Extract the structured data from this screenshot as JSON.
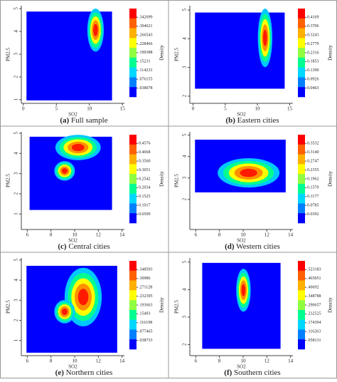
{
  "chart_data": [
    {
      "type": "heatmap",
      "caption_label": "(a)",
      "caption": "Full sample",
      "xlabel": "SO2",
      "ylabel": "PM2.5",
      "zlabel": "Density",
      "xlim": [
        -0.3,
        15.3
      ],
      "xticks": [
        0,
        5,
        10,
        15
      ],
      "ylim": [
        0.84,
        5.13
      ],
      "yticks": [
        1,
        2,
        3,
        4,
        5
      ],
      "zlim": [
        0,
        0.38
      ],
      "zticks": [
        {
          "value": 0.342699,
          "label": ".342699"
        },
        {
          "value": 0.304621,
          "label": ".304621"
        },
        {
          "value": 0.266543,
          "label": ".266543"
        },
        {
          "value": 0.228466,
          "label": ".228466"
        },
        {
          "value": 0.190388,
          "label": ".190388"
        },
        {
          "value": 0.15231,
          "label": ".15231"
        },
        {
          "value": 0.114233,
          "label": ".114233"
        },
        {
          "value": 0.076155,
          "label": ".076155"
        },
        {
          "value": 0.038078,
          "label": ".038078"
        }
      ]
    },
    {
      "type": "heatmap",
      "caption_label": "(b)",
      "caption": "Eastern cities",
      "xlabel": "SO2",
      "ylabel": "PM2.5",
      "zlabel": "Density",
      "xlim": [
        -0.5,
        15.5
      ],
      "xticks": [
        0,
        5,
        10,
        15
      ],
      "ylim": [
        1.75,
        5.15
      ],
      "yticks": [
        2,
        3,
        4,
        5
      ],
      "zlim": [
        0,
        0.463
      ],
      "zticks": [
        {
          "value": 0.4169,
          "label": "0.4169"
        },
        {
          "value": 0.3706,
          "label": "0.3706"
        },
        {
          "value": 0.3243,
          "label": "0.3243"
        },
        {
          "value": 0.2779,
          "label": "0.2779"
        },
        {
          "value": 0.2316,
          "label": "0.2316"
        },
        {
          "value": 0.1853,
          "label": "0.1853"
        },
        {
          "value": 0.139,
          "label": "0.1390"
        },
        {
          "value": 0.0926,
          "label": "0.0926"
        },
        {
          "value": 0.0463,
          "label": "0.0463"
        }
      ]
    },
    {
      "type": "heatmap",
      "caption_label": "(c)",
      "caption": "Central cities",
      "xlabel": "SO2",
      "ylabel": "PM2.5",
      "zlabel": "Density",
      "xlim": [
        5.5,
        14.2
      ],
      "xticks": [
        6,
        8,
        10,
        12,
        14
      ],
      "ylim": [
        0.23,
        5.07
      ],
      "yticks": [
        1,
        2,
        3,
        4,
        5
      ],
      "zlim": [
        0,
        0.508
      ],
      "zticks": [
        {
          "value": 0.4576,
          "label": "0.4576"
        },
        {
          "value": 0.4068,
          "label": "0.4068"
        },
        {
          "value": 0.356,
          "label": "0.3560"
        },
        {
          "value": 0.3051,
          "label": "0.3051"
        },
        {
          "value": 0.2542,
          "label": "0.2542"
        },
        {
          "value": 0.2034,
          "label": "0.2034"
        },
        {
          "value": 0.1525,
          "label": "0.1525"
        },
        {
          "value": 0.1017,
          "label": "0.1017"
        },
        {
          "value": 0.0509,
          "label": "0.0509"
        }
      ]
    },
    {
      "type": "heatmap",
      "caption_label": "(d)",
      "caption": "Western cities",
      "xlabel": "SO2",
      "ylabel": "PM2.5",
      "zlabel": "Density",
      "xlim": [
        5.5,
        14.2
      ],
      "xticks": [
        6,
        8,
        10,
        12,
        14
      ],
      "ylim": [
        0.6,
        5.15
      ],
      "yticks": [
        2,
        3,
        4,
        5
      ],
      "zlim": [
        0,
        0.392
      ],
      "zticks": [
        {
          "value": 0.3532,
          "label": "0.3532"
        },
        {
          "value": 0.314,
          "label": "0.3140"
        },
        {
          "value": 0.2747,
          "label": "0.2747"
        },
        {
          "value": 0.2355,
          "label": "0.2355"
        },
        {
          "value": 0.1962,
          "label": "0.1962"
        },
        {
          "value": 0.157,
          "label": "0.1570"
        },
        {
          "value": 0.1177,
          "label": "0.1177"
        },
        {
          "value": 0.0785,
          "label": "0.0785"
        },
        {
          "value": 0.0392,
          "label": "0.0392"
        }
      ]
    },
    {
      "type": "heatmap",
      "caption_label": "(e)",
      "caption": "Northern cities",
      "xlabel": "SO2",
      "ylabel": "PM2.5",
      "zlabel": "Density",
      "xlim": [
        5.5,
        14.2
      ],
      "xticks": [
        6,
        8,
        10,
        12,
        14
      ],
      "ylim": [
        0.25,
        5.1
      ],
      "yticks": [
        1,
        2,
        3,
        4,
        5
      ],
      "zlim": [
        0,
        0.387
      ],
      "zticks": [
        {
          "value": 0.348593,
          "label": ".348593"
        },
        {
          "value": 0.30986,
          "label": ".30986"
        },
        {
          "value": 0.271128,
          "label": ".271128"
        },
        {
          "value": 0.232395,
          "label": ".232395"
        },
        {
          "value": 0.193663,
          "label": ".193663"
        },
        {
          "value": 0.15493,
          "label": ".15493"
        },
        {
          "value": 0.116198,
          "label": ".116198"
        },
        {
          "value": 0.077465,
          "label": ".077465"
        },
        {
          "value": 0.038733,
          "label": ".038733"
        }
      ]
    },
    {
      "type": "heatmap",
      "caption_label": "(f)",
      "caption": "Southern cities",
      "xlabel": "SO2",
      "ylabel": "PM2.5",
      "zlabel": "Density",
      "xlim": [
        5.5,
        14.2
      ],
      "xticks": [
        6,
        8,
        10,
        12,
        14
      ],
      "ylim": [
        1.6,
        5.15
      ],
      "yticks": [
        2,
        3,
        4,
        5
      ],
      "zlim": [
        0,
        0.581
      ],
      "zticks": [
        {
          "value": 0.523183,
          "label": ".523183"
        },
        {
          "value": 0.465051,
          "label": ".465051"
        },
        {
          "value": 0.40692,
          "label": ".40692"
        },
        {
          "value": 0.348788,
          "label": ".348788"
        },
        {
          "value": 0.290657,
          "label": ".290657"
        },
        {
          "value": 0.232525,
          "label": ".232525"
        },
        {
          "value": 0.174394,
          "label": ".174394"
        },
        {
          "value": 0.116263,
          "label": ".116263"
        },
        {
          "value": 0.058131,
          "label": ".058131"
        }
      ]
    }
  ]
}
